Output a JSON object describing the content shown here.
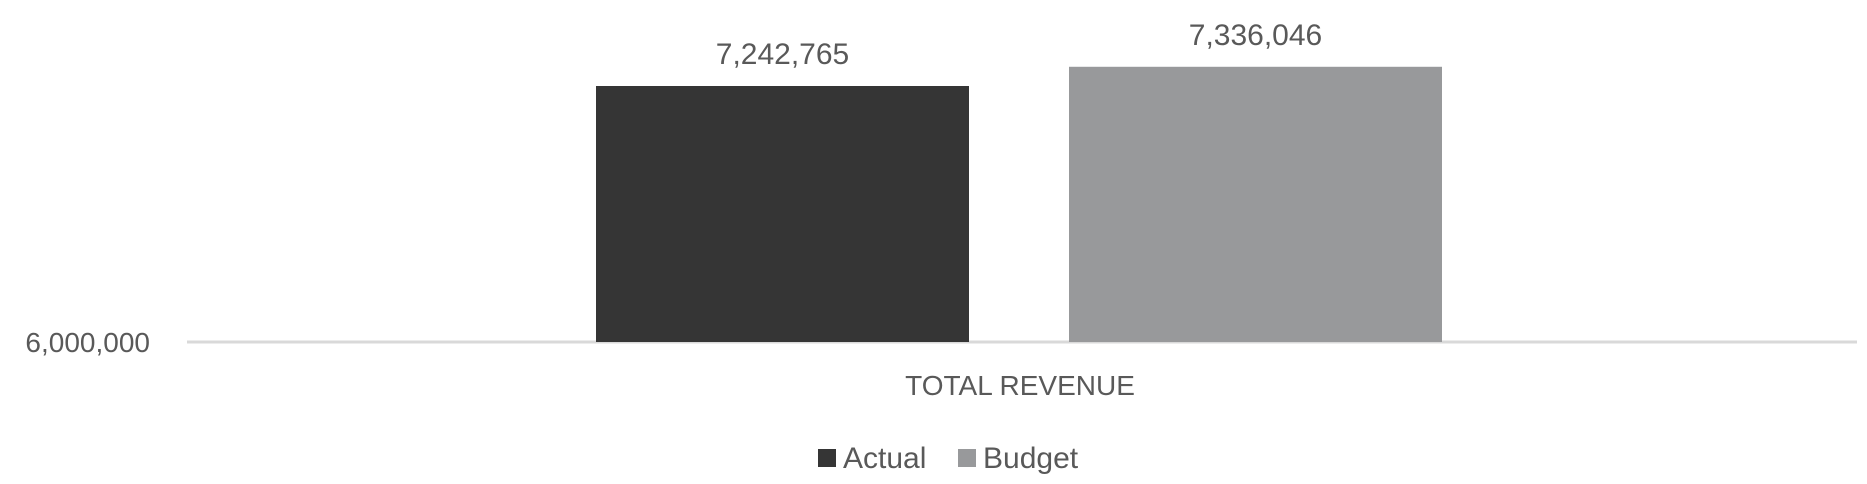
{
  "chart_data": {
    "type": "bar",
    "categories": [
      "TOTAL REVENUE"
    ],
    "series": [
      {
        "name": "Actual",
        "values": [
          7242765
        ],
        "color": "#353535"
      },
      {
        "name": "Budget",
        "values": [
          7336046
        ],
        "color": "#98999b"
      }
    ],
    "data_labels": [
      "7,242,765",
      "7,336,046"
    ],
    "y_tick_labels": [
      "6,000,000"
    ],
    "ylim": [
      6000000,
      7400000
    ],
    "grid": false,
    "legend": "bottom",
    "title": "",
    "xlabel": "",
    "ylabel": ""
  }
}
